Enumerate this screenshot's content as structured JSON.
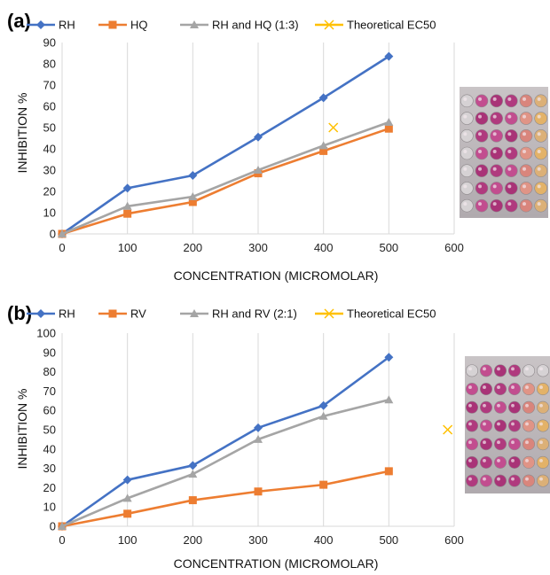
{
  "colors": {
    "blue": "#4472c4",
    "orange": "#ed7d31",
    "gray": "#a5a5a5",
    "yellow": "#ffc000",
    "grid": "#d9d9d9"
  },
  "chart_data": [
    {
      "type": "line",
      "panel_label": "(a)",
      "xlabel": "CONCENTRATION (MICROMOLAR)",
      "ylabel": "INHIBITION %",
      "xlim": [
        0,
        600
      ],
      "ylim": [
        0,
        90
      ],
      "xticks": [
        0,
        100,
        200,
        300,
        400,
        500,
        600
      ],
      "yticks": [
        0,
        10,
        20,
        30,
        40,
        50,
        60,
        70,
        80,
        90
      ],
      "grid": "vertical",
      "legend_position": "top",
      "series": [
        {
          "name": "RH",
          "marker": "diamond",
          "color": "#4472c4",
          "x": [
            0,
            100,
            200,
            300,
            400,
            500
          ],
          "y": [
            0,
            21.5,
            27.5,
            45.5,
            64,
            83.5
          ]
        },
        {
          "name": "HQ",
          "marker": "square",
          "color": "#ed7d31",
          "x": [
            0,
            100,
            200,
            300,
            400,
            500
          ],
          "y": [
            0,
            9.5,
            15,
            28.5,
            39,
            49.5
          ]
        },
        {
          "name": "RH and HQ (1:3)",
          "marker": "triangle",
          "color": "#a5a5a5",
          "x": [
            0,
            100,
            200,
            300,
            400,
            500
          ],
          "y": [
            0,
            13,
            17.5,
            30,
            41.5,
            52.5
          ]
        },
        {
          "name": "Theoretical EC50",
          "marker": "x",
          "color": "#ffc000",
          "x": [
            415
          ],
          "y": [
            50
          ]
        }
      ],
      "inset": "photo of 96-well plate",
      "wells": {
        "cols": 6,
        "rows": 7,
        "pattern": [
          "empty",
          "purple",
          "purple",
          "purple",
          "orange",
          "yellow"
        ]
      }
    },
    {
      "type": "line",
      "panel_label": "(b)",
      "xlabel": "CONCENTRATION (MICROMOLAR)",
      "ylabel": "INHIBITION %",
      "xlim": [
        0,
        600
      ],
      "ylim": [
        0,
        100
      ],
      "xticks": [
        0,
        100,
        200,
        300,
        400,
        500,
        600
      ],
      "yticks": [
        0,
        10,
        20,
        30,
        40,
        50,
        60,
        70,
        80,
        90,
        100
      ],
      "grid": "vertical",
      "legend_position": "top",
      "series": [
        {
          "name": "RH",
          "marker": "diamond",
          "color": "#4472c4",
          "x": [
            0,
            100,
            200,
            300,
            400,
            500
          ],
          "y": [
            0,
            24,
            31.5,
            51,
            62.5,
            87.5
          ]
        },
        {
          "name": "RV",
          "marker": "square",
          "color": "#ed7d31",
          "x": [
            0,
            100,
            200,
            300,
            400,
            500
          ],
          "y": [
            0,
            6.5,
            13.5,
            18,
            21.5,
            28.5
          ]
        },
        {
          "name": "RH and RV (2:1)",
          "marker": "triangle",
          "color": "#a5a5a5",
          "x": [
            0,
            100,
            200,
            300,
            400,
            500
          ],
          "y": [
            0,
            14.5,
            27,
            45,
            57,
            65.5
          ]
        },
        {
          "name": "Theoretical EC50",
          "marker": "x",
          "color": "#ffc000",
          "x": [
            590
          ],
          "y": [
            50
          ]
        }
      ],
      "inset": "photo of 96-well plate",
      "wells": {
        "cols": 6,
        "rows": 7,
        "pattern": [
          "purple",
          "purple",
          "purple",
          "purple",
          "orange",
          "yellow"
        ]
      }
    }
  ]
}
